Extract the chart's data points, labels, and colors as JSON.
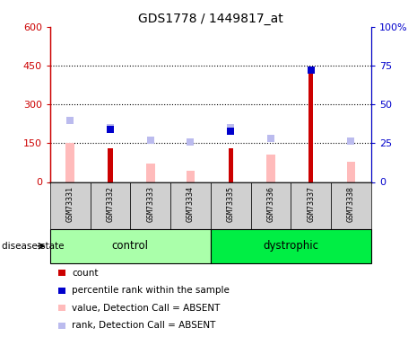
{
  "title": "GDS1778 / 1449817_at",
  "samples": [
    "GSM73331",
    "GSM73332",
    "GSM73333",
    "GSM73334",
    "GSM73335",
    "GSM73336",
    "GSM73337",
    "GSM73338"
  ],
  "count_values": [
    0,
    130,
    0,
    0,
    130,
    0,
    440,
    0
  ],
  "count_color": "#cc0000",
  "value_absent": [
    150,
    0,
    70,
    45,
    0,
    105,
    0,
    80
  ],
  "value_absent_color": "#ffbbbb",
  "rank_absent": [
    240,
    210,
    162,
    155,
    212,
    168,
    0,
    158
  ],
  "rank_absent_color": "#bbbbee",
  "percentile_rank": [
    0,
    203,
    0,
    0,
    198,
    0,
    432,
    0
  ],
  "percentile_rank_color": "#0000cc",
  "ylim_left": [
    0,
    600
  ],
  "ylim_right": [
    0,
    100
  ],
  "yticks_left": [
    0,
    150,
    300,
    450,
    600
  ],
  "yticks_right": [
    0,
    25,
    50,
    75,
    100
  ],
  "ytick_labels_left": [
    "0",
    "150",
    "300",
    "450",
    "600"
  ],
  "ytick_labels_right": [
    "0",
    "25",
    "50",
    "75",
    "100%"
  ],
  "left_axis_color": "#cc0000",
  "right_axis_color": "#0000cc",
  "control_color": "#aaffaa",
  "dystrophic_color": "#00ee44",
  "legend_items": [
    {
      "label": "count",
      "color": "#cc0000"
    },
    {
      "label": "percentile rank within the sample",
      "color": "#0000cc"
    },
    {
      "label": "value, Detection Call = ABSENT",
      "color": "#ffbbbb"
    },
    {
      "label": "rank, Detection Call = ABSENT",
      "color": "#bbbbee"
    }
  ],
  "bar_width": 0.22,
  "count_bar_width": 0.12,
  "marker_size": 6,
  "disease_state_label": "disease state"
}
